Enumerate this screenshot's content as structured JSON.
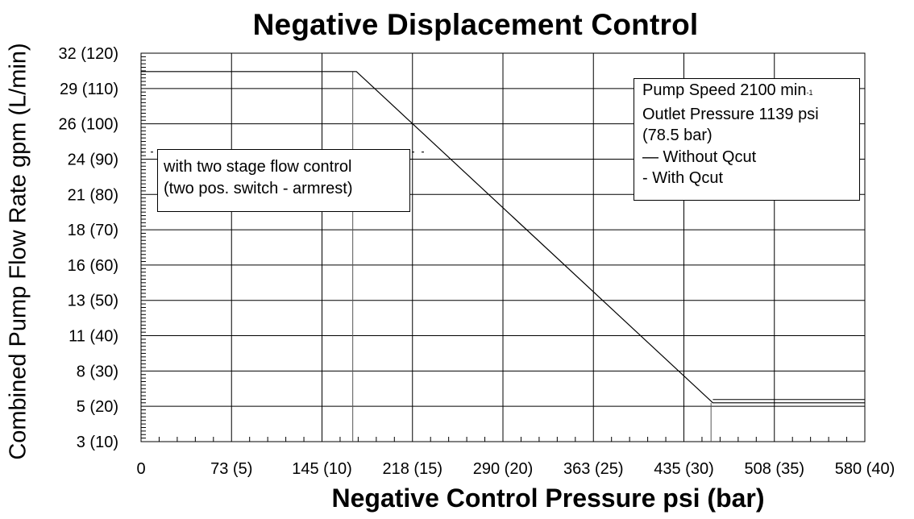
{
  "chart_data": {
    "type": "line",
    "title": "Negative Displacement Control",
    "xlabel": "Negative Control Pressure psi (bar)",
    "ylabel": "Combined Pump Flow Rate gpm (L/min)",
    "x_tick_labels": [
      "0",
      "73 (5)",
      "145 (10)",
      "218 (15)",
      "290 (20)",
      "363 (25)",
      "435 (30)",
      "508 (35)",
      "580 (40)"
    ],
    "x_ticks_bar": [
      0,
      5,
      10,
      15,
      20,
      25,
      30,
      35,
      40
    ],
    "y_tick_labels": [
      "3 (10)",
      "5 (20)",
      "8 (30)",
      "11 (40)",
      "13 (50)",
      "16 (60)",
      "18 (70)",
      "21 (80)",
      "24 (90)",
      "26 (100)",
      "29 (110)",
      "32 (120)"
    ],
    "y_ticks_lmin": [
      10,
      20,
      30,
      40,
      50,
      60,
      70,
      80,
      90,
      100,
      110,
      120
    ],
    "xlim_bar": [
      0,
      40
    ],
    "ylim_lmin": [
      10,
      120
    ],
    "grid": true,
    "series": [
      {
        "name": "Without Qcut",
        "style": "solid",
        "x_bar": [
          0,
          11.9,
          31.6,
          40
        ],
        "y_lmin": [
          114.8,
          114.8,
          21.0,
          21.0
        ]
      },
      {
        "name": "With Qcut",
        "style": "dashed",
        "x_bar": [
          0,
          15.9
        ],
        "y_lmin": [
          92.0,
          92.0
        ]
      }
    ],
    "markers": [
      {
        "x_bar": 11.7,
        "y_lmin_from": 10,
        "y_lmin_to": 114.8
      },
      {
        "x_bar": 31.5,
        "y_lmin_from": 10,
        "y_lmin_to": 21.0
      }
    ],
    "legend_position": "top-right",
    "annotation_lines": [
      "with two stage flow control",
      "(two pos. switch - armrest)"
    ],
    "legend_lines": [
      "Pump Speed 2100 min",
      "-1",
      "Outlet Pressure 1139 psi",
      "(78.5 bar)",
      "— Without Qcut",
      "-    With Qcut"
    ],
    "colors": {
      "line": "#000000",
      "grid": "#000000",
      "background": "#ffffff"
    }
  }
}
